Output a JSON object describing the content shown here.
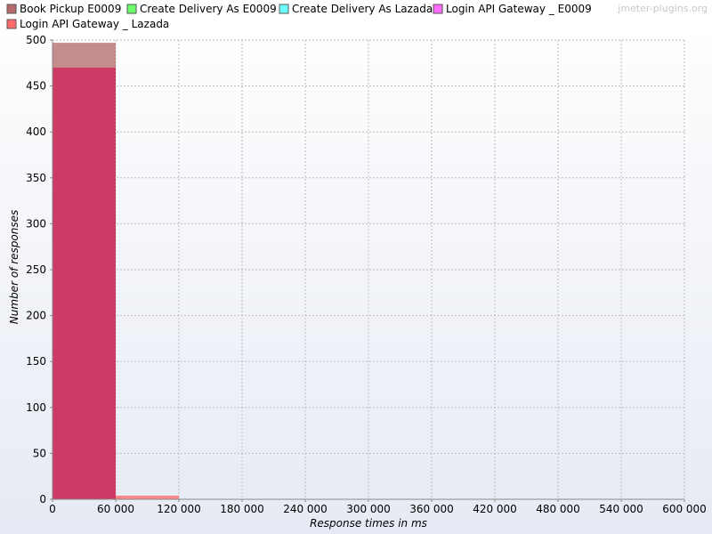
{
  "watermark": "jmeter-plugins.org",
  "chart_data": {
    "type": "bar",
    "xlabel": "Response times in ms",
    "ylabel": "Number of responses",
    "xlim": [
      0,
      600000
    ],
    "ylim": [
      0,
      500
    ],
    "x_ticks": [
      0,
      60000,
      120000,
      180000,
      240000,
      300000,
      360000,
      420000,
      480000,
      540000,
      600000
    ],
    "x_tick_labels": [
      "0",
      "60 000",
      "120 000",
      "180 000",
      "240 000",
      "300 000",
      "360 000",
      "420 000",
      "480 000",
      "540 000",
      "600 000"
    ],
    "y_ticks": [
      0,
      50,
      100,
      150,
      200,
      250,
      300,
      350,
      400,
      450,
      500
    ],
    "bin_width": 60000,
    "grid": true,
    "legend_position": "top",
    "series": [
      {
        "name": "Book Pickup E0009",
        "color": "#b56b6b",
        "bins": [
          {
            "start": 0,
            "count": 497
          }
        ]
      },
      {
        "name": "Create Delivery As E0009",
        "color": "#6bff6b",
        "bins": []
      },
      {
        "name": "Create Delivery As Lazada",
        "color": "#6bffff",
        "bins": []
      },
      {
        "name": "Login API Gateway _ E0009",
        "color": "#ff6bff",
        "bins": []
      },
      {
        "name": "Login API Gateway _ Lazada",
        "color": "#ff6b6b",
        "bins": [
          {
            "start": 0,
            "count": 470
          },
          {
            "start": 60000,
            "count": 4
          }
        ]
      }
    ],
    "overlap_color": "#cc3a66"
  }
}
